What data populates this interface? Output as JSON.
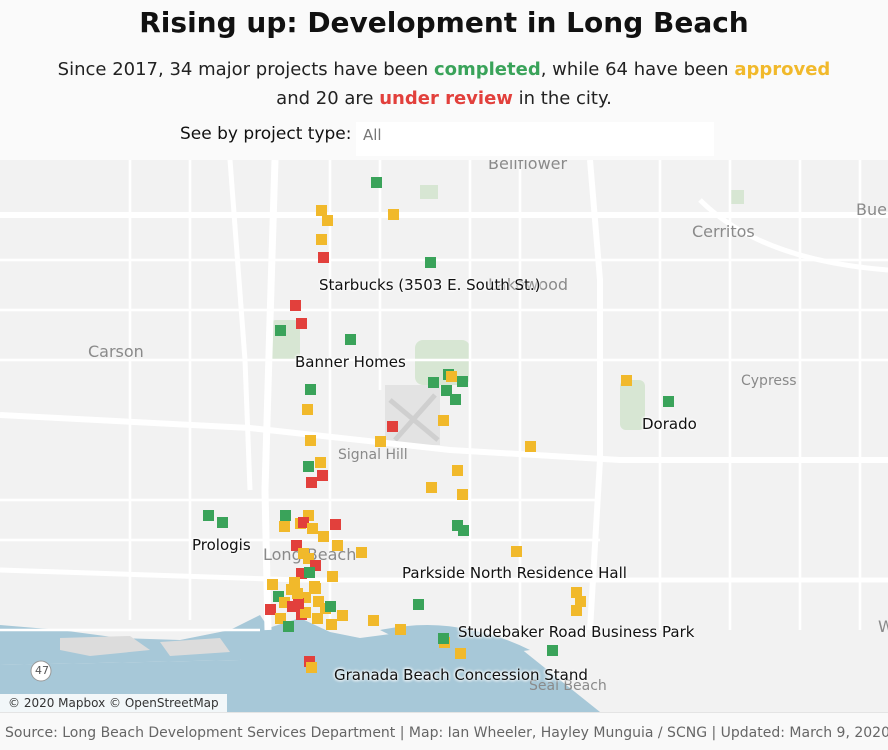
{
  "header": {
    "title": "Rising up: Development in Long Beach",
    "subtitle_part1": "Since 2017, 34 major projects have been ",
    "completed_word": "completed",
    "subtitle_part2": ", while 64 have been ",
    "approved_word": "approved",
    "subtitle_part3": "and 20 are ",
    "review_word": "under review",
    "subtitle_part4": " in the city."
  },
  "filter": {
    "label": "See by project type:",
    "value": "All"
  },
  "map": {
    "attribution": "© 2020 Mapbox © OpenStreetMap",
    "places": {
      "bellflower": "Bellflower",
      "bue": "Bue",
      "cerritos": "Cerritos",
      "lakewood": "Lakewood",
      "carson": "Carson",
      "cypress": "Cypress",
      "signal_hill": "Signal Hill",
      "long_beach": "Long Beach",
      "seal_beach": "Seal Beach",
      "w": "W",
      "hw47": "47"
    },
    "project_labels": {
      "starbucks": "Starbucks (3503 E. South St.)",
      "banner": "Banner Homes",
      "dorado": "Dorado",
      "prologis": "Prologis",
      "parkside": "Parkside North Residence Hall",
      "studebaker": "Studebaker Road Business Park",
      "granada": "Granada Beach Concession Stand"
    },
    "legend_colors": {
      "completed": "#3aa35a",
      "approved": "#f1b92b",
      "under_review": "#e2403c"
    }
  },
  "footer": {
    "source": "Source: Long Beach Development Services Department | Map: Ian Wheeler, Hayley Munguia / SCNG | Updated: March 9, 2020"
  }
}
